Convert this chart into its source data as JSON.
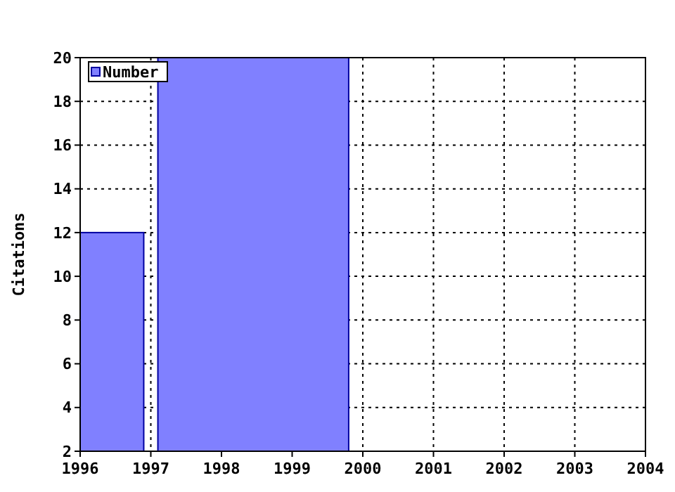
{
  "chart_data": {
    "type": "histogram",
    "ylabel": "Citations",
    "bins": [
      1996,
      1996.9,
      1997.1,
      1999.8
    ],
    "series": [
      {
        "name": "Number",
        "color": "#8080ff",
        "values": [
          12,
          null,
          20
        ]
      }
    ],
    "xlim": [
      1996,
      2004
    ],
    "xticks": [
      1996,
      1997,
      1998,
      1999,
      2000,
      2001,
      2002,
      2003,
      2004
    ],
    "ylim": [
      2,
      20
    ],
    "yticks": [
      2,
      4,
      6,
      8,
      10,
      12,
      14,
      16,
      18,
      20
    ],
    "grid": true,
    "legend": "top left"
  }
}
